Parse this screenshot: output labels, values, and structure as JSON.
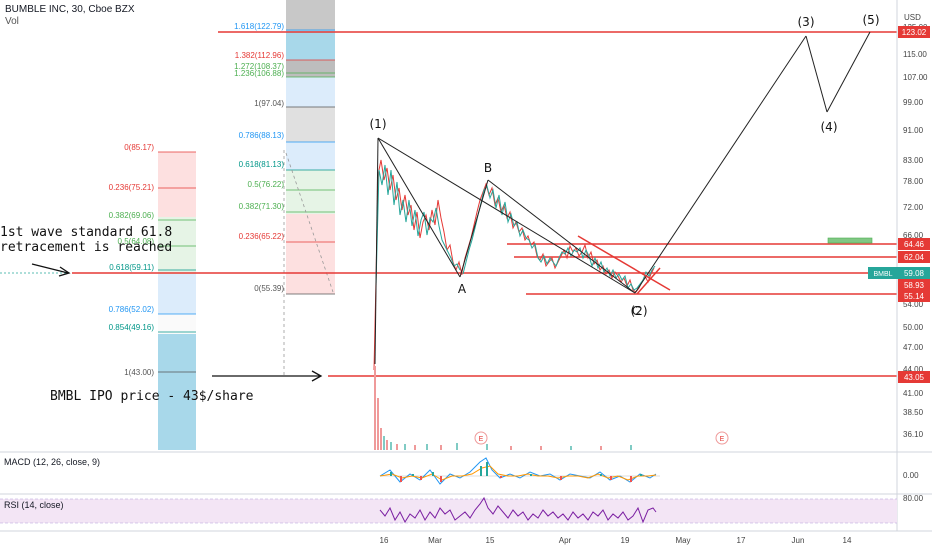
{
  "header": {
    "symbol": "BUMBLE INC, 30, Cboe BZX",
    "vol": "Vol",
    "currency": "USD"
  },
  "price_axis": [
    "125.00",
    "115.00",
    "107.00",
    "99.00",
    "91.00",
    "83.00",
    "78.00",
    "72.00",
    "66.00",
    "54.00",
    "50.00",
    "47.00",
    "44.00",
    "41.00",
    "38.50",
    "36.10"
  ],
  "price_tags": {
    "t123": "123.02",
    "t6446": "64.46",
    "t6204": "62.04",
    "bmbl_sym": "BMBL",
    "bmbl": "59.08",
    "t5893": "58.93",
    "t5514": "55.14",
    "t4305": "43.05"
  },
  "time_axis": [
    "16",
    "Mar",
    "15",
    "Apr",
    "19",
    "May",
    "17",
    "Jun",
    "14"
  ],
  "fib_left": [
    {
      "label": "0(85.17)",
      "color": "#e53935"
    },
    {
      "label": "0.236(75.21)",
      "color": "#e53935"
    },
    {
      "label": "0.382(69.06)",
      "color": "#4caf50"
    },
    {
      "label": "0.5(64.08)",
      "color": "#4caf50"
    },
    {
      "label": "0.618(59.11)",
      "color": "#009688"
    },
    {
      "label": "0.786(52.02)",
      "color": "#2196f3"
    },
    {
      "label": "0.854(49.16)",
      "color": "#009688"
    },
    {
      "label": "1(43.00)",
      "color": "#555555"
    }
  ],
  "fib_mid": [
    {
      "label": "1.618(122.79)",
      "color": "#2196f3"
    },
    {
      "label": "1.382(112.96)",
      "color": "#e53935"
    },
    {
      "label": "1.272(108.37)",
      "color": "#4caf50"
    },
    {
      "label": "1.236(106.88)",
      "color": "#4caf50"
    },
    {
      "label": "1(97.04)",
      "color": "#555555"
    },
    {
      "label": "0.786(88.13)",
      "color": "#2196f3"
    },
    {
      "label": "0.618(81.13)",
      "color": "#009688"
    },
    {
      "label": "0.5(76.22)",
      "color": "#4caf50"
    },
    {
      "label": "0.382(71.30)",
      "color": "#4caf50"
    },
    {
      "label": "0.236(65.22)",
      "color": "#e53935"
    },
    {
      "label": "0(55.39)",
      "color": "#555555"
    }
  ],
  "annotations": {
    "retracement_line1": "1st wave standard 61.8",
    "retracement_line2": "retracement is reached",
    "ipo": "BMBL IPO price - 43$/share",
    "w1": "(1)",
    "w2": "(2)",
    "w3": "(3)",
    "w4": "(4)",
    "w5": "(5)",
    "wa": "A",
    "wb": "B",
    "wc": "C",
    "earn1": "E",
    "earn2": "E"
  },
  "macd": {
    "title": "MACD (12, 26, close, 9)",
    "tick": "0.00"
  },
  "rsi": {
    "title": "RSI (14, close)",
    "tick": "80.00"
  },
  "colors": {
    "red_line": "#e53935",
    "tag_green": "#26a69a",
    "rsi_line": "#7b1fa2",
    "rsi_band": "#f3e5f5"
  }
}
